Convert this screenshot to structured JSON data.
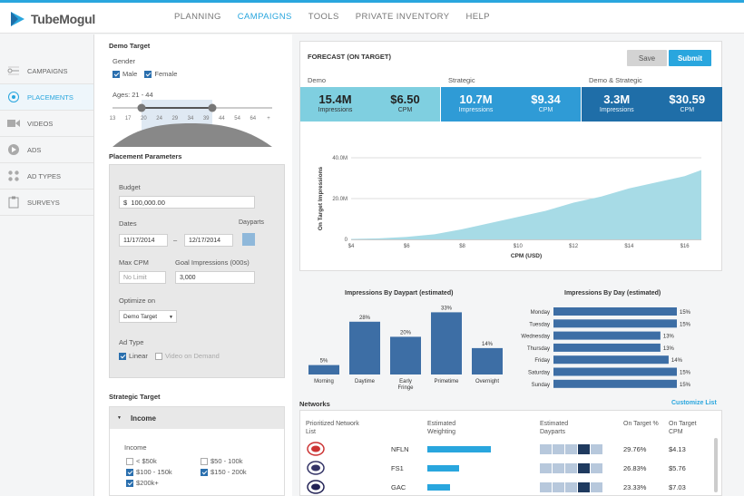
{
  "app": {
    "name": "TubeMogul"
  },
  "nav": [
    "PLANNING",
    "CAMPAIGNS",
    "TOOLS",
    "PRIVATE INVENTORY",
    "HELP"
  ],
  "sidebar": [
    {
      "label": "CAMPAIGNS",
      "icon": "campaign-icon"
    },
    {
      "label": "PLACEMENTS",
      "icon": "placement-icon"
    },
    {
      "label": "VIDEOS",
      "icon": "video-icon"
    },
    {
      "label": "ADS",
      "icon": "play-icon"
    },
    {
      "label": "AD TYPES",
      "icon": "grid-icon"
    },
    {
      "label": "SURVEYS",
      "icon": "clipboard-icon"
    }
  ],
  "demo": {
    "title": "Demo Target",
    "gender_label": "Gender",
    "male": "Male",
    "female": "Female",
    "ages_label": "Ages: 21 - 44",
    "age_ticks": [
      "13",
      "17",
      "20",
      "24",
      "29",
      "34",
      "39",
      "44",
      "54",
      "64",
      "+"
    ]
  },
  "placement": {
    "title": "Placement Parameters",
    "budget_label": "Budget",
    "budget_currency": "$",
    "budget_value": "100,000.00",
    "dates_label": "Dates",
    "dayparts_label": "Dayparts",
    "start_date": "11/17/2014",
    "date_sep": "–",
    "end_date": "12/17/2014",
    "max_cpm_label": "Max CPM",
    "max_cpm_placeholder": "No Limit",
    "goal_label": "Goal Impressions (000s)",
    "goal_value": "3,000",
    "optimize_label": "Optimize on",
    "optimize_value": "Demo Target",
    "ad_type_label": "Ad Type",
    "linear": "Linear",
    "vod": "Video on Demand"
  },
  "strategic": {
    "title": "Strategic Target",
    "income_header": "Income",
    "income_label": "Income",
    "options": [
      {
        "label": "< $50k",
        "checked": false
      },
      {
        "label": "$50 - 100k",
        "checked": false
      },
      {
        "label": "$100 - 150k",
        "checked": true
      },
      {
        "label": "$150 - 200k",
        "checked": true
      },
      {
        "label": "$200k+",
        "checked": true
      }
    ]
  },
  "forecast": {
    "title": "FORECAST (ON TARGET)",
    "save": "Save",
    "submit": "Submit",
    "groups": [
      {
        "name": "Demo",
        "impressions": "15.4M",
        "impressions_label": "Impressions",
        "cpm": "$6.50",
        "cpm_label": "CPM",
        "color": "#7fcfe0"
      },
      {
        "name": "Strategic",
        "impressions": "10.7M",
        "impressions_label": "Impressions",
        "cpm": "$9.34",
        "cpm_label": "CPM",
        "color": "#2f9bd6"
      },
      {
        "name": "Demo & Strategic",
        "impressions": "3.3M",
        "impressions_label": "Impressions",
        "cpm": "$30.59",
        "cpm_label": "CPM",
        "color": "#1f6ea8"
      }
    ]
  },
  "chart_data": [
    {
      "type": "area",
      "ylabel": "On Target Impressions",
      "xlabel": "CPM (USD)",
      "x_ticks": [
        "$4",
        "$6",
        "$8",
        "$10",
        "$12",
        "$14",
        "$16"
      ],
      "y_ticks": [
        "0",
        "20.0M",
        "40.0M"
      ],
      "x": [
        4,
        5,
        6,
        7,
        8,
        9,
        10,
        11,
        12,
        13,
        14,
        15,
        16,
        16.6
      ],
      "y": [
        0.2,
        0.5,
        1.2,
        2.5,
        5,
        8,
        11,
        14,
        18,
        21,
        25,
        28,
        31,
        34
      ],
      "ylim": [
        0,
        40
      ],
      "color": "#a7dbe6"
    },
    {
      "type": "bar",
      "title": "Impressions By Daypart (estimated)",
      "categories": [
        "Morning",
        "Daytime",
        "Early Fringe",
        "Primetime",
        "Overnight"
      ],
      "values": [
        5,
        28,
        20,
        33,
        14
      ],
      "labels": [
        "5%",
        "28%",
        "20%",
        "33%",
        "14%"
      ],
      "color": "#3d6ea5"
    },
    {
      "type": "bar",
      "title": "Impressions By Day (estimated)",
      "categories": [
        "Monday",
        "Tuesday",
        "Wednesday",
        "Thursday",
        "Friday",
        "Saturday",
        "Sunday"
      ],
      "values": [
        15,
        15,
        13,
        13,
        14,
        15,
        15
      ],
      "labels": [
        "15%",
        "15%",
        "13%",
        "13%",
        "14%",
        "15%",
        "15%"
      ],
      "color": "#3d6ea5"
    }
  ],
  "networks": {
    "title": "Networks",
    "customize": "Customize List",
    "headers": [
      "Prioritized Network List",
      "Estimated Weighting",
      "Estimated Dayparts",
      "On Target %",
      "On Target CPM"
    ],
    "rows": [
      {
        "code": "NFLN",
        "weight": 1.0,
        "pct": "29.76%",
        "cpm": "$4.13"
      },
      {
        "code": "FS1",
        "weight": 0.5,
        "pct": "26.83%",
        "cpm": "$5.76"
      },
      {
        "code": "GAC",
        "weight": 0.35,
        "pct": "23.33%",
        "cpm": "$7.03"
      }
    ]
  }
}
